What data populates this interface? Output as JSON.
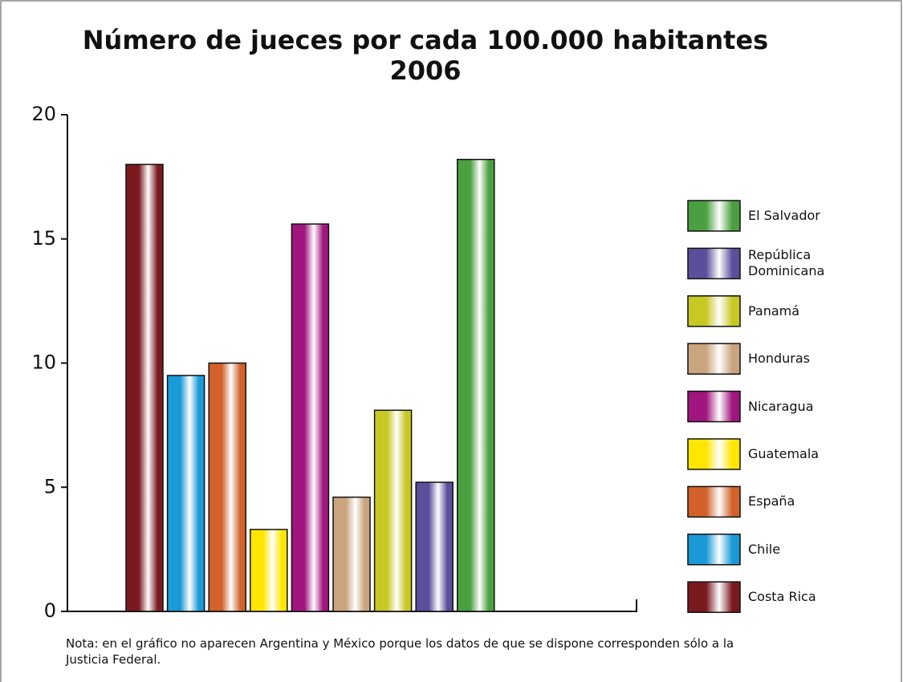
{
  "chart_data": {
    "type": "bar",
    "title": "Número de jueces por cada 100.000 habitantes",
    "subtitle": "2006",
    "categories": [
      "Costa Rica",
      "Chile",
      "España",
      "Guatemala",
      "Nicaragua",
      "Honduras",
      "Panamá",
      "República Dominicana",
      "El Salvador"
    ],
    "values": [
      18,
      9.5,
      10,
      3.3,
      15.6,
      4.6,
      8.1,
      5.2,
      18.2
    ],
    "colors": [
      "#7a1a1f",
      "#1a9ad6",
      "#d2622a",
      "#ffe600",
      "#a0157e",
      "#c9a47e",
      "#c8c825",
      "#5a4f9a",
      "#4aa040"
    ],
    "ylim": [
      0,
      20
    ],
    "yticks": [
      0,
      5,
      10,
      15,
      20
    ],
    "legend": "right",
    "note": "Nota: en el gráfico no aparecen Argentina y México porque los datos de que se dispone corresponden sólo a la Justicia Federal."
  }
}
